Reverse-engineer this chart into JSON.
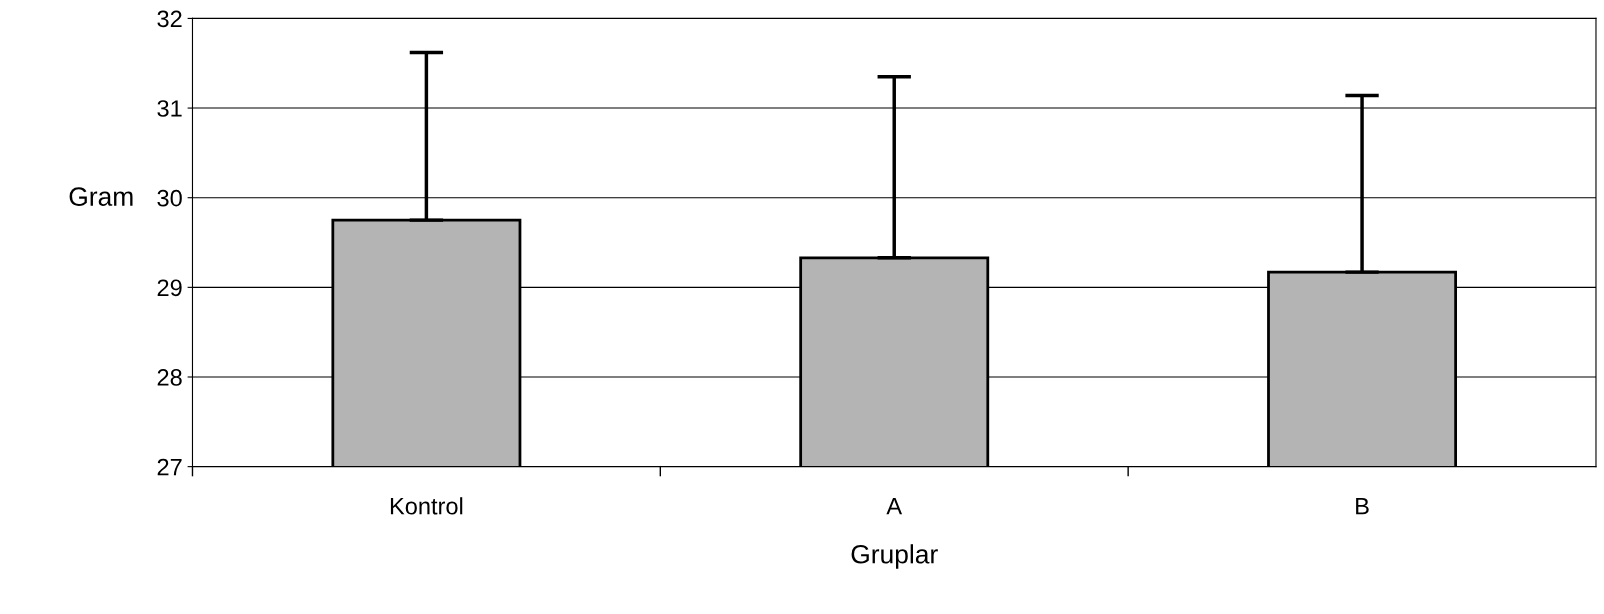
{
  "chart_data": {
    "type": "bar",
    "xlabel": "Gruplar",
    "ylabel": "Gram",
    "categories": [
      "Kontrol",
      "A",
      "B"
    ],
    "values": [
      29.75,
      29.33,
      29.17
    ],
    "errors": [
      [
        29.75,
        31.62
      ],
      [
        29.33,
        31.35
      ],
      [
        29.17,
        31.14
      ]
    ],
    "color": "#b4b4b4",
    "ylim": [
      27,
      32
    ],
    "yticks": [
      27,
      28,
      29,
      30,
      31,
      32
    ],
    "grid": "y",
    "legend": false
  }
}
